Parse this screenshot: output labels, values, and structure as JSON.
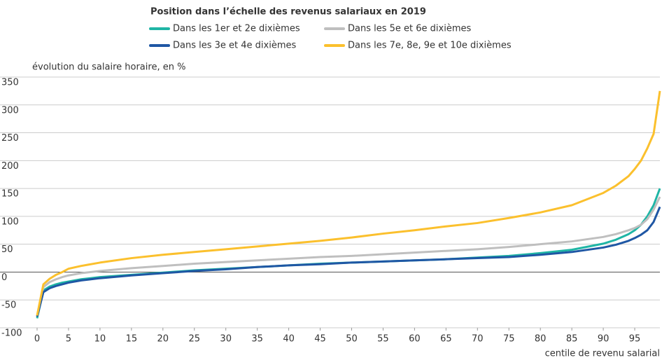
{
  "chart_data": {
    "type": "line",
    "legend_title": "Position dans l’échelle des revenus salariaux en 2019",
    "ylabel": "évolution du salaire horaire, en %",
    "xlabel": "centile de revenu salarial",
    "x": [
      0,
      1,
      2,
      3,
      4,
      5,
      7,
      10,
      15,
      20,
      25,
      30,
      35,
      40,
      45,
      50,
      55,
      60,
      65,
      70,
      75,
      80,
      85,
      90,
      92,
      94,
      95,
      96,
      97,
      98,
      99
    ],
    "series": [
      {
        "name": "Dans les 1er et 2e dixièmes",
        "color": "#1fb5a5",
        "values": [
          -83,
          -33,
          -26,
          -22,
          -19,
          -17,
          -13,
          -9,
          -5,
          -1,
          3,
          6,
          9,
          12,
          15,
          17,
          19,
          21,
          23,
          26,
          29,
          34,
          40,
          51,
          58,
          68,
          75,
          85,
          100,
          120,
          150
        ]
      },
      {
        "name": "Dans les 5e et 6e dixièmes",
        "color": "#bfbfbf",
        "values": [
          -80,
          -27,
          -18,
          -13,
          -9,
          -6,
          -2,
          2,
          7,
          11,
          15,
          18,
          21,
          24,
          27,
          29,
          32,
          35,
          38,
          41,
          45,
          50,
          55,
          63,
          68,
          75,
          79,
          85,
          95,
          112,
          135
        ]
      },
      {
        "name": "Dans les 3e et 4e dixièmes",
        "color": "#1f57a4",
        "values": [
          -80,
          -36,
          -29,
          -25,
          -22,
          -19,
          -15,
          -11,
          -6,
          -2,
          2,
          5,
          9,
          12,
          14,
          17,
          19,
          21,
          23,
          25,
          27,
          31,
          36,
          44,
          49,
          56,
          61,
          67,
          75,
          90,
          117
        ]
      },
      {
        "name": "Dans les 7e, 8e, 9e et 10e dixièmes",
        "color": "#fbc02d",
        "values": [
          -78,
          -22,
          -12,
          -5,
          0,
          6,
          11,
          17,
          25,
          31,
          36,
          41,
          46,
          51,
          56,
          62,
          69,
          75,
          82,
          88,
          97,
          107,
          120,
          142,
          155,
          172,
          185,
          200,
          222,
          248,
          325
        ]
      }
    ],
    "xlim": [
      0,
      99
    ],
    "xticks": [
      0,
      5,
      10,
      15,
      20,
      25,
      30,
      35,
      40,
      45,
      50,
      55,
      60,
      65,
      70,
      75,
      80,
      85,
      90,
      95
    ],
    "ylim": [
      -100,
      350
    ],
    "yticks": [
      -100,
      -50,
      0,
      50,
      100,
      150,
      200,
      250,
      300,
      350
    ],
    "grid": true
  }
}
